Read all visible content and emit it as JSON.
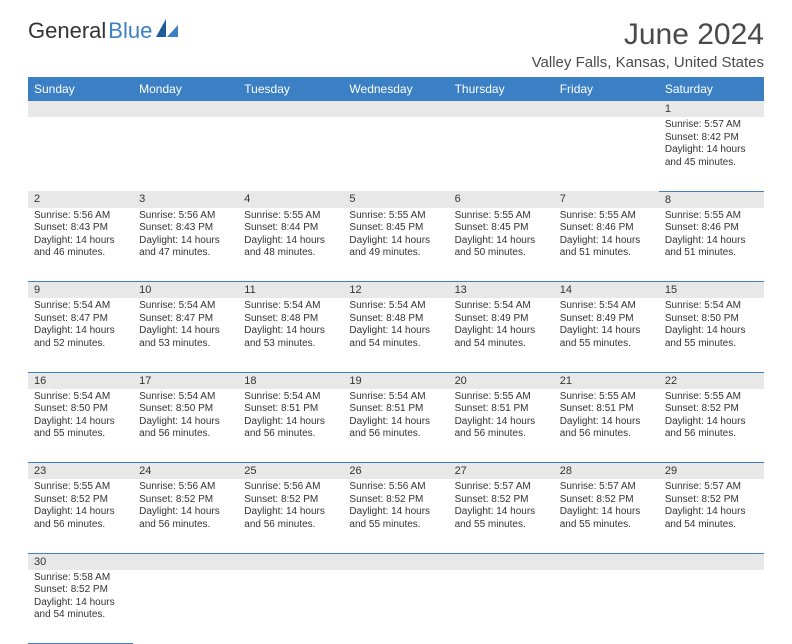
{
  "logo": {
    "part1": "General",
    "part2": "Blue"
  },
  "title": "June 2024",
  "location": "Valley Falls, Kansas, United States",
  "colors": {
    "header_bg": "#3b7fc4",
    "header_fg": "#ffffff",
    "daynum_bg": "#e8e8e8",
    "border": "#3b7fc4",
    "text": "#333333",
    "background": "#ffffff"
  },
  "day_headers": [
    "Sunday",
    "Monday",
    "Tuesday",
    "Wednesday",
    "Thursday",
    "Friday",
    "Saturday"
  ],
  "weeks": [
    {
      "nums": [
        "",
        "",
        "",
        "",
        "",
        "",
        "1"
      ],
      "cells": [
        null,
        null,
        null,
        null,
        null,
        null,
        {
          "sunrise": "Sunrise: 5:57 AM",
          "sunset": "Sunset: 8:42 PM",
          "daylight": "Daylight: 14 hours and 45 minutes."
        }
      ]
    },
    {
      "nums": [
        "2",
        "3",
        "4",
        "5",
        "6",
        "7",
        "8"
      ],
      "cells": [
        {
          "sunrise": "Sunrise: 5:56 AM",
          "sunset": "Sunset: 8:43 PM",
          "daylight": "Daylight: 14 hours and 46 minutes."
        },
        {
          "sunrise": "Sunrise: 5:56 AM",
          "sunset": "Sunset: 8:43 PM",
          "daylight": "Daylight: 14 hours and 47 minutes."
        },
        {
          "sunrise": "Sunrise: 5:55 AM",
          "sunset": "Sunset: 8:44 PM",
          "daylight": "Daylight: 14 hours and 48 minutes."
        },
        {
          "sunrise": "Sunrise: 5:55 AM",
          "sunset": "Sunset: 8:45 PM",
          "daylight": "Daylight: 14 hours and 49 minutes."
        },
        {
          "sunrise": "Sunrise: 5:55 AM",
          "sunset": "Sunset: 8:45 PM",
          "daylight": "Daylight: 14 hours and 50 minutes."
        },
        {
          "sunrise": "Sunrise: 5:55 AM",
          "sunset": "Sunset: 8:46 PM",
          "daylight": "Daylight: 14 hours and 51 minutes."
        },
        {
          "sunrise": "Sunrise: 5:55 AM",
          "sunset": "Sunset: 8:46 PM",
          "daylight": "Daylight: 14 hours and 51 minutes."
        }
      ]
    },
    {
      "nums": [
        "9",
        "10",
        "11",
        "12",
        "13",
        "14",
        "15"
      ],
      "cells": [
        {
          "sunrise": "Sunrise: 5:54 AM",
          "sunset": "Sunset: 8:47 PM",
          "daylight": "Daylight: 14 hours and 52 minutes."
        },
        {
          "sunrise": "Sunrise: 5:54 AM",
          "sunset": "Sunset: 8:47 PM",
          "daylight": "Daylight: 14 hours and 53 minutes."
        },
        {
          "sunrise": "Sunrise: 5:54 AM",
          "sunset": "Sunset: 8:48 PM",
          "daylight": "Daylight: 14 hours and 53 minutes."
        },
        {
          "sunrise": "Sunrise: 5:54 AM",
          "sunset": "Sunset: 8:48 PM",
          "daylight": "Daylight: 14 hours and 54 minutes."
        },
        {
          "sunrise": "Sunrise: 5:54 AM",
          "sunset": "Sunset: 8:49 PM",
          "daylight": "Daylight: 14 hours and 54 minutes."
        },
        {
          "sunrise": "Sunrise: 5:54 AM",
          "sunset": "Sunset: 8:49 PM",
          "daylight": "Daylight: 14 hours and 55 minutes."
        },
        {
          "sunrise": "Sunrise: 5:54 AM",
          "sunset": "Sunset: 8:50 PM",
          "daylight": "Daylight: 14 hours and 55 minutes."
        }
      ]
    },
    {
      "nums": [
        "16",
        "17",
        "18",
        "19",
        "20",
        "21",
        "22"
      ],
      "cells": [
        {
          "sunrise": "Sunrise: 5:54 AM",
          "sunset": "Sunset: 8:50 PM",
          "daylight": "Daylight: 14 hours and 55 minutes."
        },
        {
          "sunrise": "Sunrise: 5:54 AM",
          "sunset": "Sunset: 8:50 PM",
          "daylight": "Daylight: 14 hours and 56 minutes."
        },
        {
          "sunrise": "Sunrise: 5:54 AM",
          "sunset": "Sunset: 8:51 PM",
          "daylight": "Daylight: 14 hours and 56 minutes."
        },
        {
          "sunrise": "Sunrise: 5:54 AM",
          "sunset": "Sunset: 8:51 PM",
          "daylight": "Daylight: 14 hours and 56 minutes."
        },
        {
          "sunrise": "Sunrise: 5:55 AM",
          "sunset": "Sunset: 8:51 PM",
          "daylight": "Daylight: 14 hours and 56 minutes."
        },
        {
          "sunrise": "Sunrise: 5:55 AM",
          "sunset": "Sunset: 8:51 PM",
          "daylight": "Daylight: 14 hours and 56 minutes."
        },
        {
          "sunrise": "Sunrise: 5:55 AM",
          "sunset": "Sunset: 8:52 PM",
          "daylight": "Daylight: 14 hours and 56 minutes."
        }
      ]
    },
    {
      "nums": [
        "23",
        "24",
        "25",
        "26",
        "27",
        "28",
        "29"
      ],
      "cells": [
        {
          "sunrise": "Sunrise: 5:55 AM",
          "sunset": "Sunset: 8:52 PM",
          "daylight": "Daylight: 14 hours and 56 minutes."
        },
        {
          "sunrise": "Sunrise: 5:56 AM",
          "sunset": "Sunset: 8:52 PM",
          "daylight": "Daylight: 14 hours and 56 minutes."
        },
        {
          "sunrise": "Sunrise: 5:56 AM",
          "sunset": "Sunset: 8:52 PM",
          "daylight": "Daylight: 14 hours and 56 minutes."
        },
        {
          "sunrise": "Sunrise: 5:56 AM",
          "sunset": "Sunset: 8:52 PM",
          "daylight": "Daylight: 14 hours and 55 minutes."
        },
        {
          "sunrise": "Sunrise: 5:57 AM",
          "sunset": "Sunset: 8:52 PM",
          "daylight": "Daylight: 14 hours and 55 minutes."
        },
        {
          "sunrise": "Sunrise: 5:57 AM",
          "sunset": "Sunset: 8:52 PM",
          "daylight": "Daylight: 14 hours and 55 minutes."
        },
        {
          "sunrise": "Sunrise: 5:57 AM",
          "sunset": "Sunset: 8:52 PM",
          "daylight": "Daylight: 14 hours and 54 minutes."
        }
      ]
    },
    {
      "nums": [
        "30",
        "",
        "",
        "",
        "",
        "",
        ""
      ],
      "cells": [
        {
          "sunrise": "Sunrise: 5:58 AM",
          "sunset": "Sunset: 8:52 PM",
          "daylight": "Daylight: 14 hours and 54 minutes."
        },
        null,
        null,
        null,
        null,
        null,
        null
      ]
    }
  ]
}
